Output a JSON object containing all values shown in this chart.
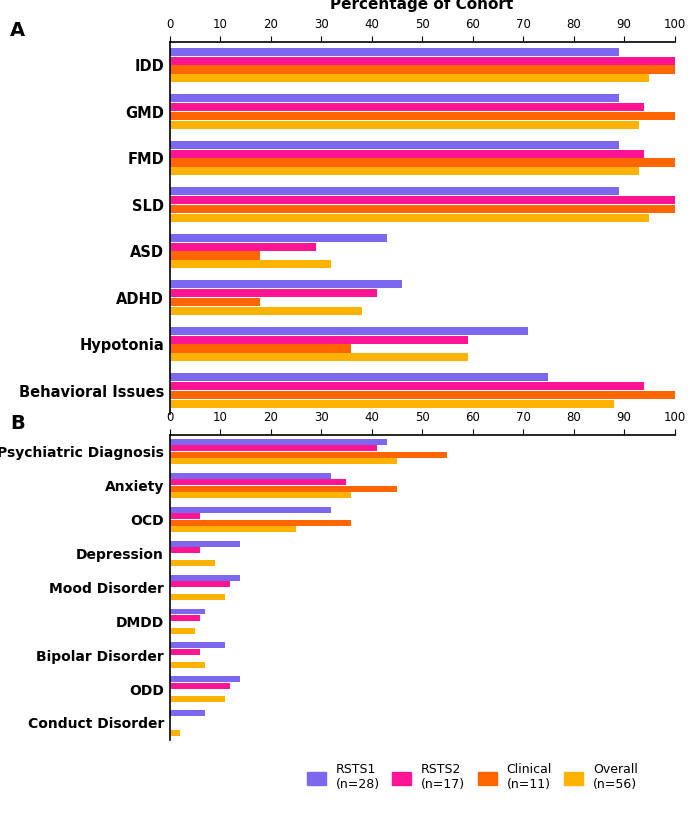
{
  "panel_A": {
    "title": "Percentage of Cohort",
    "categories": [
      "IDD",
      "GMD",
      "FMD",
      "SLD",
      "ASD",
      "ADHD",
      "Hypotonia",
      "Behavioral Issues"
    ],
    "series": {
      "RSTS1 (n=28)": [
        89,
        89,
        89,
        89,
        43,
        46,
        71,
        75
      ],
      "RSTS2 (n=17)": [
        100,
        94,
        94,
        100,
        29,
        41,
        59,
        94
      ],
      "Clinical (n=11)": [
        100,
        100,
        100,
        100,
        18,
        18,
        36,
        100
      ],
      "Overall (n=56)": [
        95,
        93,
        93,
        95,
        32,
        38,
        59,
        88
      ]
    }
  },
  "panel_B": {
    "categories": [
      "Psychiatric Diagnosis",
      "Anxiety",
      "OCD",
      "Depression",
      "Mood Disorder",
      "DMDD",
      "Bipolar Disorder",
      "ODD",
      "Conduct Disorder"
    ],
    "series": {
      "RSTS1 (n=28)": [
        43,
        32,
        32,
        14,
        14,
        7,
        11,
        14,
        7
      ],
      "RSTS2 (n=17)": [
        41,
        35,
        6,
        6,
        12,
        6,
        6,
        12,
        0
      ],
      "Clinical (n=11)": [
        55,
        45,
        36,
        0,
        0,
        0,
        0,
        0,
        0
      ],
      "Overall (n=56)": [
        45,
        36,
        25,
        9,
        11,
        5,
        7,
        11,
        2
      ]
    }
  },
  "colors": {
    "RSTS1 (n=28)": "#7B68EE",
    "RSTS2 (n=17)": "#FF1493",
    "Clinical (n=11)": "#FF6600",
    "Overall (n=56)": "#FFB300"
  },
  "legend_labels": [
    "RSTS1\n(n=28)",
    "RSTS2\n(n=17)",
    "Clinical\n(n=11)",
    "Overall\n(n=56)"
  ],
  "legend_colors": [
    "#7B68EE",
    "#FF1493",
    "#FF6600",
    "#FFB300"
  ],
  "xticks": [
    0,
    10,
    20,
    30,
    40,
    50,
    60,
    70,
    80,
    90,
    100
  ]
}
